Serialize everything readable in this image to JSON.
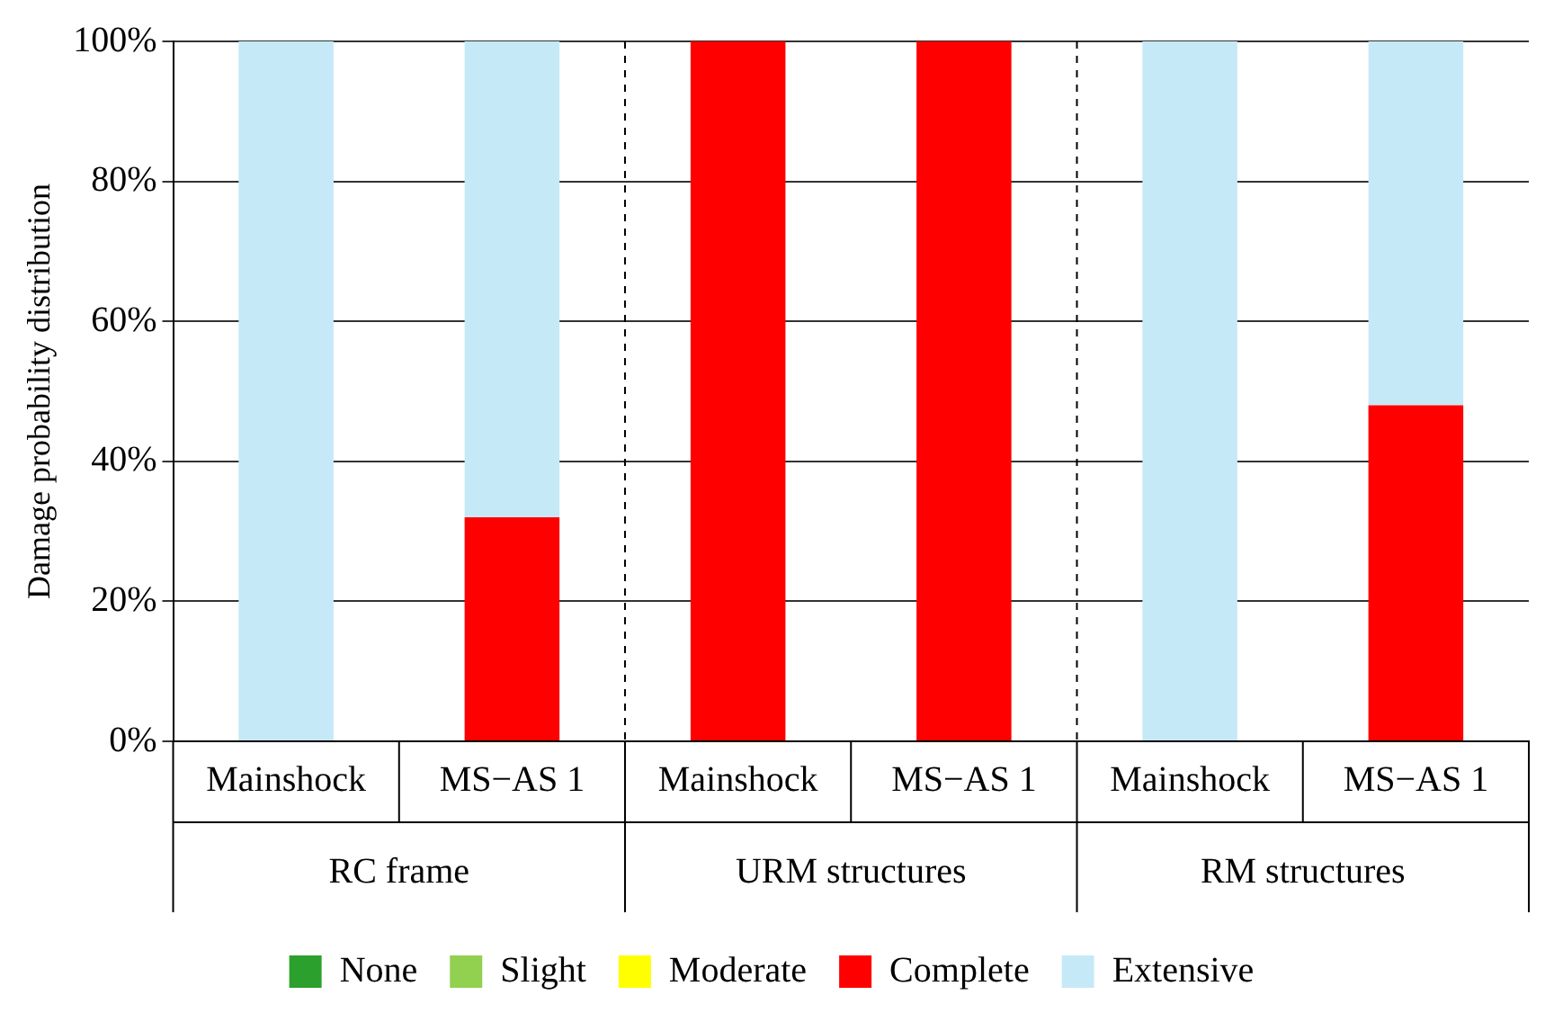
{
  "chart_data": {
    "type": "bar",
    "stacked": true,
    "ylabel": "Damage probability distribution",
    "categories": [
      "Mainshock",
      "MS−AS 1",
      "Mainshock",
      "MS−AS 1",
      "Mainshock",
      "MS−AS 1"
    ],
    "annotations": [
      "RC frame",
      "URM structures",
      "RM structures"
    ],
    "series": [
      {
        "name": "None",
        "color": "#2ca02c",
        "values": [
          0,
          0,
          0,
          0,
          0,
          0
        ]
      },
      {
        "name": "Slight",
        "color": "#92d050",
        "values": [
          0,
          0,
          0,
          0,
          0,
          0
        ]
      },
      {
        "name": "Moderate",
        "color": "#ffff00",
        "values": [
          0,
          0,
          0,
          0,
          0,
          0
        ]
      },
      {
        "name": "Complete",
        "color": "#ff0000",
        "values": [
          0,
          32,
          100,
          100,
          0,
          48
        ]
      },
      {
        "name": "Extensive",
        "color": "#c6e9f7",
        "values": [
          100,
          68,
          0,
          0,
          100,
          52
        ]
      }
    ],
    "ylim": [
      0,
      100
    ],
    "yticks": [
      {
        "value": 0,
        "label": "0%"
      },
      {
        "value": 20,
        "label": "20%"
      },
      {
        "value": 40,
        "label": "40%"
      },
      {
        "value": 60,
        "label": "60%"
      },
      {
        "value": 80,
        "label": "80%"
      },
      {
        "value": 100,
        "label": "100%"
      }
    ],
    "grid": "y",
    "legend": "bottom"
  }
}
